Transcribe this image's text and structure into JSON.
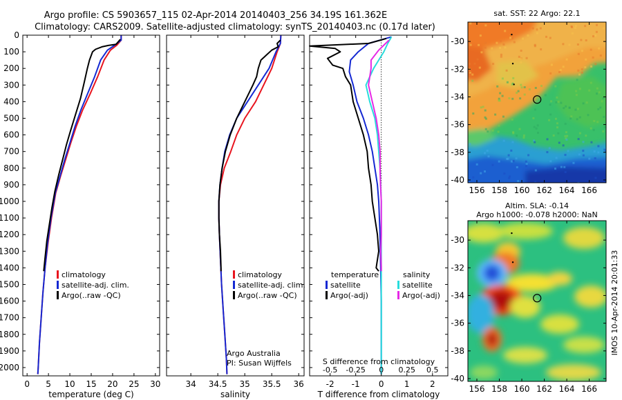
{
  "header": {
    "line1": "Argo profile: CS 5903657_115 02-Apr-2014 20140403_256 34.19S 161.362E",
    "line2": "Climatology: CARS2009. Satellite-adjusted climatology: synTS_20140403.nc (0.17d later)"
  },
  "credit": {
    "org": "Argo Australia",
    "pi": "PI: Susan Wijffels",
    "stamp": "IMOS 10-Apr-2014 20:01:33"
  },
  "colors": {
    "climatology": "#e8141e",
    "satellite": "#1428d2",
    "argo": "#000000",
    "salinity_satellite": "#28dcdc",
    "salinity_argo": "#e628e6"
  },
  "chart_data": [
    {
      "id": "temperature",
      "type": "line",
      "xlabel": "temperature (deg C)",
      "xlim": [
        -1,
        31
      ],
      "xticks": [
        0,
        5,
        10,
        15,
        20,
        25,
        30
      ],
      "ylim": [
        2050,
        0
      ],
      "yticks": [
        0,
        100,
        200,
        300,
        400,
        500,
        600,
        700,
        800,
        900,
        1000,
        1100,
        1200,
        1300,
        1400,
        1500,
        1600,
        1700,
        1800,
        1900,
        2000
      ],
      "legend": [
        "climatology",
        "satellite-adj. clim.",
        "Argo(..raw -QC)"
      ],
      "series": [
        {
          "name": "climatology",
          "color": "#e8141e",
          "points": [
            [
              22,
              0
            ],
            [
              22,
              30
            ],
            [
              21,
              60
            ],
            [
              19.5,
              90
            ],
            [
              18,
              150
            ],
            [
              16.5,
              250
            ],
            [
              14.8,
              350
            ],
            [
              13,
              450
            ],
            [
              11.5,
              550
            ],
            [
              10.2,
              650
            ],
            [
              9,
              750
            ],
            [
              7.8,
              850
            ],
            [
              6.7,
              950
            ],
            [
              5.7,
              1100
            ],
            [
              4.9,
              1250
            ],
            [
              4.2,
              1400
            ],
            [
              3.7,
              1550
            ],
            [
              3.3,
              1700
            ],
            [
              2.9,
              1850
            ],
            [
              2.6,
              2000
            ],
            [
              2.5,
              2040
            ]
          ]
        },
        {
          "name": "satellite-adj. clim.",
          "color": "#1428d2",
          "points": [
            [
              22,
              0
            ],
            [
              22,
              30
            ],
            [
              20.5,
              60
            ],
            [
              18.8,
              90
            ],
            [
              17.2,
              150
            ],
            [
              15.8,
              250
            ],
            [
              14.2,
              350
            ],
            [
              12.6,
              450
            ],
            [
              11.2,
              550
            ],
            [
              10,
              650
            ],
            [
              8.8,
              750
            ],
            [
              7.7,
              850
            ],
            [
              6.6,
              950
            ],
            [
              5.6,
              1100
            ],
            [
              4.8,
              1250
            ],
            [
              4.2,
              1400
            ],
            [
              3.7,
              1550
            ],
            [
              3.3,
              1700
            ],
            [
              2.9,
              1850
            ],
            [
              2.6,
              2000
            ],
            [
              2.5,
              2040
            ]
          ]
        },
        {
          "name": "Argo(..raw -QC)",
          "color": "#000000",
          "points": [
            [
              21.8,
              25
            ],
            [
              20.8,
              55
            ],
            [
              19,
              62
            ],
            [
              17.5,
              70
            ],
            [
              16,
              85
            ],
            [
              15.3,
              100
            ],
            [
              14.6,
              150
            ],
            [
              14.1,
              200
            ],
            [
              13.4,
              280
            ],
            [
              12.5,
              380
            ],
            [
              11.3,
              480
            ],
            [
              10.1,
              580
            ],
            [
              9.2,
              660
            ],
            [
              8.4,
              740
            ],
            [
              7.4,
              840
            ],
            [
              6.5,
              940
            ],
            [
              5.8,
              1040
            ],
            [
              5.2,
              1140
            ],
            [
              4.6,
              1240
            ],
            [
              4.2,
              1340
            ],
            [
              3.9,
              1420
            ]
          ]
        }
      ]
    },
    {
      "id": "salinity",
      "type": "line",
      "xlabel": "salinity",
      "xlim": [
        33.55,
        36.1
      ],
      "xticks": [
        34,
        34.5,
        35,
        35.5,
        36
      ],
      "ylim": [
        2050,
        0
      ],
      "legend": [
        "climatology",
        "satellite-adj. clim.",
        "Argo(..raw -QC)"
      ],
      "series": [
        {
          "name": "climatology",
          "color": "#e8141e",
          "points": [
            [
              35.67,
              0
            ],
            [
              35.66,
              50
            ],
            [
              35.6,
              100
            ],
            [
              35.5,
              200
            ],
            [
              35.35,
              300
            ],
            [
              35.2,
              400
            ],
            [
              35,
              500
            ],
            [
              34.85,
              600
            ],
            [
              34.74,
              700
            ],
            [
              34.62,
              800
            ],
            [
              34.55,
              900
            ],
            [
              34.52,
              1000
            ],
            [
              34.52,
              1100
            ],
            [
              34.53,
              1200
            ],
            [
              34.55,
              1350
            ],
            [
              34.57,
              1500
            ],
            [
              34.6,
              1650
            ],
            [
              34.63,
              1800
            ],
            [
              34.66,
              1950
            ],
            [
              34.67,
              2040
            ]
          ]
        },
        {
          "name": "satellite-adj. clim.",
          "color": "#1428d2",
          "points": [
            [
              35.67,
              0
            ],
            [
              35.66,
              50
            ],
            [
              35.58,
              100
            ],
            [
              35.45,
              200
            ],
            [
              35.25,
              300
            ],
            [
              35.05,
              400
            ],
            [
              34.85,
              500
            ],
            [
              34.72,
              600
            ],
            [
              34.63,
              700
            ],
            [
              34.58,
              800
            ],
            [
              34.54,
              900
            ],
            [
              34.52,
              1000
            ],
            [
              34.52,
              1100
            ],
            [
              34.53,
              1200
            ],
            [
              34.55,
              1350
            ],
            [
              34.57,
              1500
            ],
            [
              34.6,
              1650
            ],
            [
              34.63,
              1800
            ],
            [
              34.66,
              1950
            ],
            [
              34.67,
              2040
            ]
          ]
        },
        {
          "name": "Argo(..raw -QC)",
          "color": "#000000",
          "points": [
            [
              35.66,
              30
            ],
            [
              35.6,
              50
            ],
            [
              35.62,
              70
            ],
            [
              35.5,
              90
            ],
            [
              35.4,
              120
            ],
            [
              35.3,
              150
            ],
            [
              35.25,
              200
            ],
            [
              35.22,
              250
            ],
            [
              35.15,
              300
            ],
            [
              35,
              400
            ],
            [
              34.85,
              500
            ],
            [
              34.73,
              600
            ],
            [
              34.64,
              700
            ],
            [
              34.58,
              800
            ],
            [
              34.54,
              900
            ],
            [
              34.52,
              1000
            ],
            [
              34.52,
              1100
            ],
            [
              34.53,
              1200
            ],
            [
              34.55,
              1300
            ],
            [
              34.56,
              1400
            ],
            [
              34.56,
              1420
            ]
          ]
        }
      ]
    },
    {
      "id": "difference",
      "type": "line",
      "xlabel": "T difference from climatology",
      "top_label": "S difference from climatology",
      "xlim": [
        -2.8,
        2.6
      ],
      "xticks": [
        -2,
        -1,
        0,
        1,
        2
      ],
      "top_ticks": [
        {
          "label": "-0.5",
          "x": -2
        },
        {
          "label": "-0.25",
          "x": -1
        },
        {
          "label": "0",
          "x": 0
        },
        {
          "label": "0.25",
          "x": 1
        },
        {
          "label": "0.5",
          "x": 2
        }
      ],
      "zero_line": 0,
      "ylim": [
        2050,
        0
      ],
      "legend_temperature": {
        "title": "temperature",
        "entries": [
          "satellite",
          "Argo(-adj)"
        ]
      },
      "legend_salinity": {
        "title": "salinity",
        "entries": [
          "satellite",
          "Argo(-adj)"
        ]
      },
      "series": [
        {
          "name": "temperature satellite",
          "color": "#1428d2",
          "points": [
            [
              0.4,
              10
            ],
            [
              -0.5,
              50
            ],
            [
              -0.9,
              100
            ],
            [
              -1.2,
              150
            ],
            [
              -1.25,
              220
            ],
            [
              -1.1,
              300
            ],
            [
              -0.95,
              400
            ],
            [
              -0.7,
              500
            ],
            [
              -0.5,
              600
            ],
            [
              -0.35,
              700
            ],
            [
              -0.25,
              800
            ],
            [
              -0.15,
              900
            ],
            [
              -0.1,
              1000
            ],
            [
              -0.05,
              1200
            ],
            [
              0,
              1600
            ],
            [
              0,
              2040
            ]
          ]
        },
        {
          "name": "temperature Argo(-adj)",
          "color": "#000000",
          "points": [
            [
              0.2,
              20
            ],
            [
              -0.5,
              50
            ],
            [
              -2.8,
              65
            ],
            [
              -1.8,
              80
            ],
            [
              -1.6,
              100
            ],
            [
              -2.1,
              140
            ],
            [
              -1.9,
              180
            ],
            [
              -1.5,
              200
            ],
            [
              -1.4,
              250
            ],
            [
              -1.2,
              300
            ],
            [
              -1.1,
              400
            ],
            [
              -0.9,
              500
            ],
            [
              -0.7,
              600
            ],
            [
              -0.55,
              700
            ],
            [
              -0.5,
              800
            ],
            [
              -0.4,
              900
            ],
            [
              -0.35,
              1000
            ],
            [
              -0.25,
              1100
            ],
            [
              -0.15,
              1200
            ],
            [
              -0.1,
              1300
            ],
            [
              -0.2,
              1400
            ],
            [
              -0.1,
              1420
            ]
          ]
        },
        {
          "name": "salinity satellite",
          "color": "#28dcdc",
          "points": [
            [
              0.4,
              10
            ],
            [
              0.25,
              50
            ],
            [
              0.1,
              100
            ],
            [
              -0.1,
              150
            ],
            [
              -0.3,
              200
            ],
            [
              -0.6,
              300
            ],
            [
              -0.45,
              400
            ],
            [
              -0.25,
              500
            ],
            [
              -0.15,
              600
            ],
            [
              -0.1,
              700
            ],
            [
              -0.05,
              800
            ],
            [
              0,
              1000
            ],
            [
              0,
              1400
            ],
            [
              0,
              2040
            ]
          ]
        },
        {
          "name": "salinity Argo(-adj)",
          "color": "#e628e6",
          "points": [
            [
              0.3,
              30
            ],
            [
              0.1,
              60
            ],
            [
              -0.1,
              90
            ],
            [
              -0.4,
              150
            ],
            [
              -0.4,
              200
            ],
            [
              -0.5,
              300
            ],
            [
              -0.35,
              400
            ],
            [
              -0.2,
              500
            ],
            [
              -0.1,
              600
            ],
            [
              -0.05,
              700
            ],
            [
              -0.05,
              800
            ],
            [
              -0.03,
              900
            ],
            [
              0,
              1000
            ],
            [
              0,
              1100
            ],
            [
              0,
              1200
            ],
            [
              -0.02,
              1300
            ],
            [
              0,
              1400
            ],
            [
              0,
              1420
            ]
          ]
        }
      ]
    },
    {
      "id": "sst_map",
      "type": "heatmap",
      "title": "sat. SST: 22 Argo: 22.1",
      "xlim": [
        155.2,
        167.5
      ],
      "ylim": [
        -40.2,
        -28.6
      ],
      "xticks": [
        156,
        158,
        160,
        162,
        164,
        166
      ],
      "yticks": [
        -30,
        -32,
        -34,
        -36,
        -38,
        -40
      ],
      "profile_location": {
        "lon": 161.362,
        "lat": -34.19
      },
      "track_points": [
        {
          "lon": 159.1,
          "lat": -29.5
        },
        {
          "lon": 159.2,
          "lat": -31.6
        },
        {
          "lon": 159.3,
          "lat": -33.1
        }
      ]
    },
    {
      "id": "sla_map",
      "type": "heatmap",
      "title": "Altim. SLA: -0.14",
      "subtitle": "Argo h1000: -0.078 h2000: NaN",
      "xlim": [
        155.2,
        167.5
      ],
      "ylim": [
        -40.2,
        -28.6
      ],
      "xticks": [
        156,
        158,
        160,
        162,
        164,
        166
      ],
      "yticks": [
        -30,
        -32,
        -34,
        -36,
        -38,
        -40
      ],
      "profile_location": {
        "lon": 161.362,
        "lat": -34.19
      },
      "track_points": [
        {
          "lon": 159.1,
          "lat": -29.5
        },
        {
          "lon": 159.2,
          "lat": -31.6
        }
      ]
    }
  ]
}
